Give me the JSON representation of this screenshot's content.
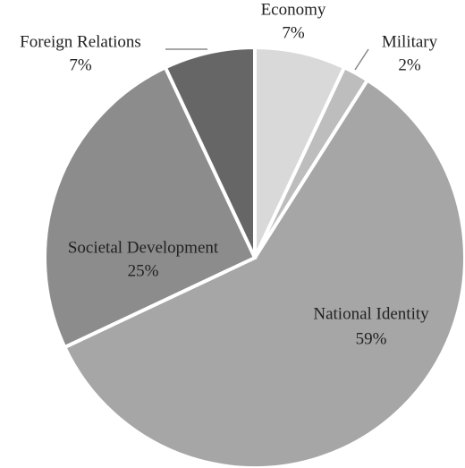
{
  "chart_data": {
    "type": "pie",
    "categories": [
      "Economy",
      "Military",
      "National Identity",
      "Societal Development",
      "Foreign Relations"
    ],
    "values": [
      7,
      2,
      59,
      25,
      7
    ],
    "value_labels": [
      "7%",
      "2%",
      "59%",
      "25%",
      "7%"
    ],
    "colors": [
      "#d9d9d9",
      "#bdbdbd",
      "#a6a6a6",
      "#8c8c8c",
      "#666666"
    ]
  }
}
